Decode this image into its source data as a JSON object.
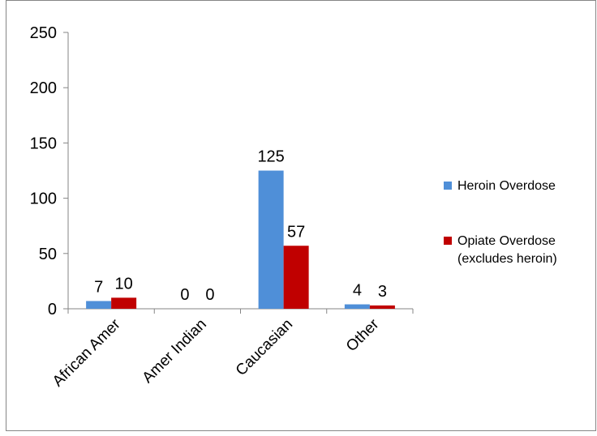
{
  "chart_data": {
    "type": "bar",
    "categories": [
      "African Amer",
      "Amer Indian",
      "Caucasian",
      "Other"
    ],
    "series": [
      {
        "name": "Heroin Overdose",
        "values": [
          7,
          0,
          125,
          4
        ],
        "color": "#4f8fd8"
      },
      {
        "name": "Opiate Overdose (excludes heroin)",
        "legend_lines": [
          "Opiate Overdose",
          "(excludes heroin)"
        ],
        "values": [
          10,
          0,
          57,
          3
        ],
        "color": "#c00000"
      }
    ],
    "data_labels": [
      [
        "7",
        "0",
        "125",
        "4"
      ],
      [
        "10",
        "0",
        "57",
        "3"
      ]
    ],
    "yticks": [
      "0",
      "50",
      "100",
      "150",
      "200",
      "250"
    ],
    "ylim": [
      0,
      250
    ],
    "grid": false,
    "legend_position": "right",
    "x_tick_rotation": "-45deg",
    "border_color": "#868686",
    "axis_color": "#868686"
  }
}
